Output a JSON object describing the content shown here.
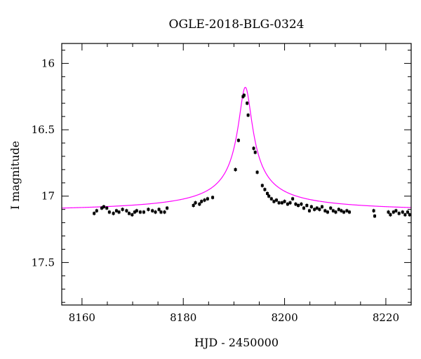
{
  "chart_data": {
    "type": "scatter",
    "title": "OGLE-2018-BLG-0324",
    "xlabel": "HJD - 2450000",
    "ylabel": "I magnitude",
    "xlim": [
      8156,
      8225
    ],
    "ylim": [
      17.82,
      15.85
    ],
    "y_inverted": true,
    "x_major_ticks": [
      8160,
      8180,
      8200,
      8220
    ],
    "x_tick_labels": [
      "8160",
      "8180",
      "8200",
      "8220"
    ],
    "x_minor_step": 5,
    "y_major_ticks": [
      16,
      16.5,
      17,
      17.5
    ],
    "y_tick_labels": [
      "16",
      "16.5",
      "17",
      "17.5"
    ],
    "y_minor_step": 0.1,
    "grid": false,
    "colors": {
      "data": "#000000",
      "model": "#ff00ff"
    },
    "series": [
      {
        "kind": "points",
        "x": [
          8162.4,
          8162.9,
          8163.9,
          8164.3,
          8164.9,
          8165.4,
          8166.2,
          8166.8,
          8167.3,
          8168.0,
          8168.8,
          8169.3,
          8169.9,
          8170.4,
          8170.8,
          8171.5,
          8172.2,
          8173.1,
          8173.9,
          8174.5,
          8175.2,
          8175.6,
          8176.3,
          8176.8,
          8182.0,
          8182.4,
          8183.2,
          8183.6,
          8184.2,
          8184.8,
          8185.8,
          8190.3,
          8190.9,
          8191.8,
          8192.0,
          8192.6,
          8192.8,
          8193.9,
          8194.2,
          8194.6,
          8195.6,
          8196.1,
          8196.6,
          8196.9,
          8197.4,
          8197.9,
          8198.4,
          8198.9,
          8199.5,
          8200.0,
          8200.6,
          8201.1,
          8201.6,
          8202.2,
          8202.7,
          8203.3,
          8203.8,
          8204.4,
          8204.9,
          8205.3,
          8205.9,
          8206.4,
          8206.9,
          8207.4,
          8208.0,
          8208.5,
          8209.1,
          8209.6,
          8210.1,
          8210.7,
          8211.2,
          8211.7,
          8212.3,
          8212.8,
          8217.6,
          8217.8,
          8220.5,
          8220.9,
          8221.5,
          8222.0,
          8222.6,
          8223.3,
          8223.8,
          8224.3,
          8224.7
        ],
        "y": [
          17.13,
          17.11,
          17.09,
          17.08,
          17.09,
          17.12,
          17.13,
          17.11,
          17.12,
          17.1,
          17.11,
          17.13,
          17.14,
          17.12,
          17.11,
          17.12,
          17.12,
          17.1,
          17.11,
          17.12,
          17.1,
          17.12,
          17.12,
          17.09,
          17.07,
          17.05,
          17.06,
          17.04,
          17.03,
          17.02,
          17.01,
          16.8,
          16.58,
          16.25,
          16.24,
          16.3,
          16.39,
          16.64,
          16.67,
          16.82,
          16.92,
          16.95,
          16.98,
          17.0,
          17.02,
          17.04,
          17.03,
          17.05,
          17.05,
          17.04,
          17.06,
          17.05,
          17.02,
          17.06,
          17.07,
          17.06,
          17.09,
          17.07,
          17.11,
          17.08,
          17.1,
          17.09,
          17.1,
          17.08,
          17.11,
          17.12,
          17.09,
          17.11,
          17.12,
          17.1,
          17.11,
          17.12,
          17.11,
          17.12,
          17.11,
          17.15,
          17.12,
          17.14,
          17.12,
          17.11,
          17.13,
          17.12,
          17.14,
          17.12,
          17.14
        ],
        "err": 0.015
      },
      {
        "kind": "model",
        "t0": 8192.25,
        "base_mag": 17.125,
        "peak_mag": 16.18,
        "width_days": 1.35
      }
    ]
  }
}
